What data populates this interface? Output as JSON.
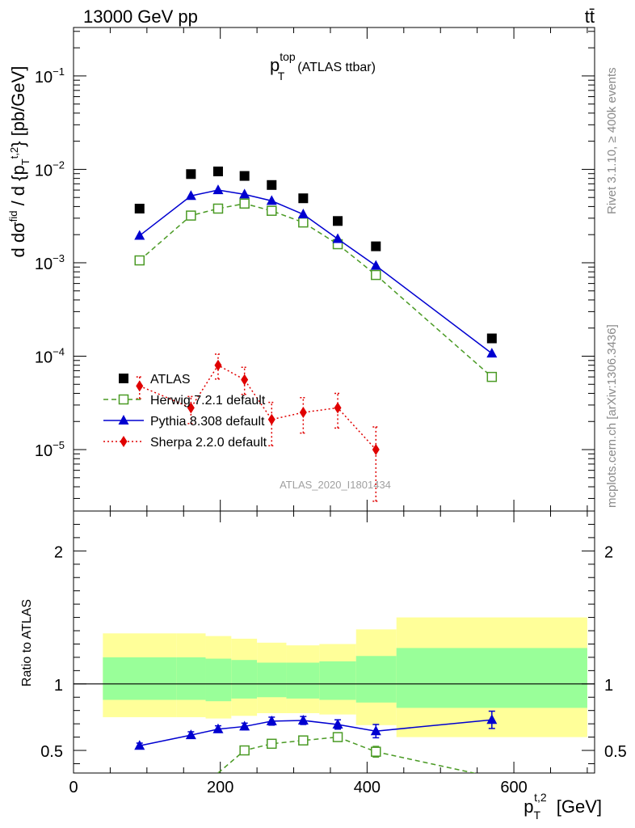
{
  "header": {
    "left": "13000 GeV pp",
    "right": "tt̄"
  },
  "title": {
    "main": "p",
    "sup": "top",
    "sub": "T",
    "rest": "(ATLAS ttbar)"
  },
  "side_labels": {
    "rivet": "Rivet 3.1.10, ≥ 400k events",
    "mcplots": "mcplots.cern.ch [arXiv:1306.3436]"
  },
  "watermark": "ATLAS_2020_I1801434",
  "ylabel_top": "d dσ^fid / d {p_T^t,2} [pb/GeV]",
  "ylabel_bottom": "Ratio to ATLAS",
  "xlabel": "p_T^t,2 [GeV]",
  "chart_data": [
    {
      "type": "scatter",
      "panel": "main",
      "yscale": "log",
      "xlim": [
        0,
        710
      ],
      "ylim": [
        2.2e-06,
        0.33
      ],
      "x_ticks": [
        0,
        200,
        400,
        600
      ],
      "y_tick_labels": [
        "10^-5",
        "10^-4",
        "10^-3",
        "10^-2",
        "10^-1"
      ],
      "y_tick_values": [
        1e-05,
        0.0001,
        0.001,
        0.01,
        0.1
      ],
      "legend_position": "lower-left",
      "series": [
        {
          "name": "ATLAS",
          "style": "data-square",
          "color": "#000000",
          "x": [
            90,
            160,
            197,
            233,
            270,
            313,
            360,
            412,
            570
          ],
          "y": [
            0.0038,
            0.0089,
            0.0095,
            0.0085,
            0.0068,
            0.0049,
            0.0028,
            0.0015,
            0.000155
          ]
        },
        {
          "name": "Herwig 7.2.1 default",
          "style": "open-square-dashed",
          "color": "#4a9a24",
          "x": [
            90,
            160,
            197,
            233,
            270,
            313,
            360,
            412,
            570
          ],
          "y": [
            0.00106,
            0.0032,
            0.0038,
            0.0043,
            0.0036,
            0.0027,
            0.00158,
            0.00074,
            6e-05
          ]
        },
        {
          "name": "Pythia 8.308 default",
          "style": "triangle-solid",
          "color": "#0000d0",
          "x": [
            90,
            160,
            197,
            233,
            270,
            313,
            360,
            412,
            570
          ],
          "y": [
            0.00195,
            0.0052,
            0.006,
            0.0054,
            0.0046,
            0.0033,
            0.0018,
            0.00093,
            0.000107
          ],
          "yerr": [
            0.0,
            0.0,
            0.0,
            0.0,
            0.0,
            0.0,
            0.0,
            0.0,
            1e-05
          ]
        },
        {
          "name": "Sherpa 2.2.0 default",
          "style": "diamond-dotted",
          "color": "#e00000",
          "x": [
            90,
            160,
            197,
            233,
            270,
            313,
            360,
            412
          ],
          "y": [
            4.8e-05,
            2.8e-05,
            8e-05,
            5.6e-05,
            2.1e-05,
            2.5e-05,
            2.8e-05,
            1e-05
          ],
          "ylo": [
            3.5e-05,
            1.9e-05,
            5.7e-05,
            3.9e-05,
            1.1e-05,
            1.5e-05,
            1.7e-05,
            2.8e-06
          ],
          "yhi": [
            6e-05,
            3.7e-05,
            0.000105,
            7.6e-05,
            3.2e-05,
            3.6e-05,
            4e-05,
            1.75e-05
          ]
        }
      ]
    },
    {
      "type": "line",
      "panel": "ratio",
      "yscale": "linear",
      "xlim": [
        0,
        710
      ],
      "ylim": [
        0.33,
        2.3
      ],
      "y_ticks": [
        0.5,
        1,
        2
      ],
      "y_tick_labels": [
        "0.5",
        "1",
        "2"
      ],
      "x_ticks": [
        0,
        200,
        400,
        600
      ],
      "x_tick_labels": [
        "0",
        "200",
        "400",
        "600"
      ],
      "bands": {
        "edges": [
          40,
          140,
          180,
          215,
          250,
          290,
          335,
          385,
          440,
          700
        ],
        "yellow_lo": [
          0.75,
          0.75,
          0.74,
          0.76,
          0.78,
          0.78,
          0.77,
          0.69,
          0.6
        ],
        "yellow_hi": [
          1.38,
          1.38,
          1.36,
          1.34,
          1.31,
          1.29,
          1.3,
          1.41,
          1.5
        ],
        "green_lo": [
          0.88,
          0.88,
          0.87,
          0.89,
          0.9,
          0.89,
          0.88,
          0.86,
          0.82
        ],
        "green_hi": [
          1.2,
          1.2,
          1.19,
          1.18,
          1.16,
          1.16,
          1.17,
          1.21,
          1.27
        ],
        "yellow_color": "#ffff99",
        "green_color": "#99ff99"
      },
      "series": [
        {
          "name": "Pythia 8.308 default",
          "color": "#0000d0",
          "x": [
            90,
            160,
            197,
            233,
            270,
            313,
            360,
            412,
            570
          ],
          "y": [
            0.535,
            0.615,
            0.66,
            0.68,
            0.72,
            0.725,
            0.695,
            0.645,
            0.73
          ],
          "yerr": [
            0.02,
            0.025,
            0.025,
            0.025,
            0.03,
            0.03,
            0.035,
            0.05,
            0.065
          ]
        },
        {
          "name": "Herwig 7.2.1 default",
          "color": "#4a9a24",
          "x": [
            233,
            270,
            313,
            360,
            412,
            570
          ],
          "y": [
            0.5,
            0.55,
            0.575,
            0.6,
            0.49,
            0.3
          ],
          "yerr": [
            0.015,
            0.02,
            0.02,
            0.03,
            0.04,
            0.0
          ],
          "segment_from": [
            [
              197,
              0.33
            ]
          ]
        }
      ]
    }
  ]
}
